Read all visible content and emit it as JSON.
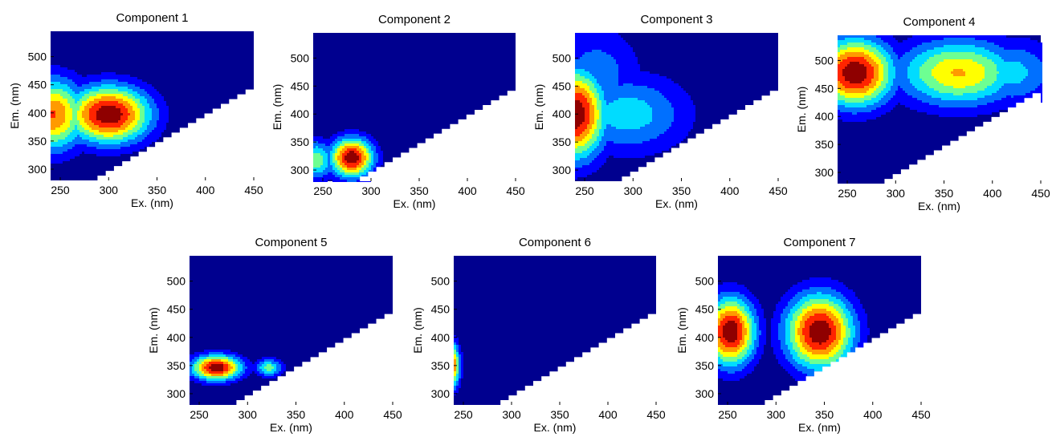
{
  "chart_data": [
    {
      "type": "heatmap",
      "title": "Component 1",
      "xlabel": "Ex. (nm)",
      "ylabel": "Em. (nm)",
      "xlim": [
        240,
        450
      ],
      "ylim": [
        280,
        545
      ],
      "xticks": [
        250,
        300,
        350,
        400,
        450
      ],
      "yticks": [
        300,
        350,
        400,
        450,
        500
      ],
      "peaks": [
        {
          "ex": 300,
          "em": 397,
          "intensity": 1.0,
          "sx": 27,
          "sy": 32
        },
        {
          "ex": 242,
          "em": 397,
          "intensity": 0.75,
          "sx": 22,
          "sy": 40
        },
        {
          "ex": 272,
          "em": 397,
          "intensity": 0.38,
          "sx": 30,
          "sy": 30
        }
      ]
    },
    {
      "type": "heatmap",
      "title": "Component 2",
      "xlabel": "Ex. (nm)",
      "ylabel": "Em. (nm)",
      "xlim": [
        240,
        450
      ],
      "ylim": [
        280,
        545
      ],
      "xticks": [
        250,
        300,
        350,
        400,
        450
      ],
      "yticks": [
        300,
        350,
        400,
        450,
        500
      ],
      "peaks": [
        {
          "ex": 280,
          "em": 322,
          "intensity": 1.0,
          "sx": 14,
          "sy": 22
        },
        {
          "ex": 243,
          "em": 318,
          "intensity": 0.45,
          "sx": 12,
          "sy": 22
        }
      ]
    },
    {
      "type": "heatmap",
      "title": "Component 3",
      "xlabel": "Ex. (nm)",
      "ylabel": "Em. (nm)",
      "xlim": [
        240,
        450
      ],
      "ylim": [
        280,
        545
      ],
      "xticks": [
        250,
        300,
        350,
        400,
        450
      ],
      "yticks": [
        300,
        350,
        400,
        450,
        500
      ],
      "peaks": [
        {
          "ex": 240,
          "em": 400,
          "intensity": 1.0,
          "sx": 20,
          "sy": 50
        },
        {
          "ex": 295,
          "em": 400,
          "intensity": 0.32,
          "sx": 40,
          "sy": 45
        },
        {
          "ex": 262,
          "em": 470,
          "intensity": 0.22,
          "sx": 30,
          "sy": 55
        }
      ]
    },
    {
      "type": "heatmap",
      "title": "Component 4",
      "xlabel": "Ex. (nm)",
      "ylabel": "Em. (nm)",
      "xlim": [
        240,
        450
      ],
      "ylim": [
        280,
        545
      ],
      "xticks": [
        250,
        300,
        350,
        400,
        450
      ],
      "yticks": [
        300,
        350,
        400,
        450,
        500
      ],
      "peaks": [
        {
          "ex": 258,
          "em": 478,
          "intensity": 1.0,
          "sx": 25,
          "sy": 38
        },
        {
          "ex": 365,
          "em": 478,
          "intensity": 0.62,
          "sx": 40,
          "sy": 38
        },
        {
          "ex": 420,
          "em": 478,
          "intensity": 0.3,
          "sx": 30,
          "sy": 38
        }
      ]
    },
    {
      "type": "heatmap",
      "title": "Component 5",
      "xlabel": "Ex. (nm)",
      "ylabel": "Em. (nm)",
      "xlim": [
        240,
        450
      ],
      "ylim": [
        280,
        545
      ],
      "xticks": [
        250,
        300,
        350,
        400,
        450
      ],
      "yticks": [
        300,
        350,
        400,
        450,
        500
      ],
      "peaks": [
        {
          "ex": 268,
          "em": 346,
          "intensity": 1.0,
          "sx": 16,
          "sy": 14
        },
        {
          "ex": 322,
          "em": 346,
          "intensity": 0.42,
          "sx": 9,
          "sy": 10
        }
      ]
    },
    {
      "type": "heatmap",
      "title": "Component 6",
      "xlabel": "Ex. (nm)",
      "ylabel": "Em. (nm)",
      "xlim": [
        240,
        450
      ],
      "ylim": [
        280,
        545
      ],
      "xticks": [
        250,
        300,
        350,
        400,
        450
      ],
      "yticks": [
        300,
        350,
        400,
        450,
        500
      ],
      "peaks": [
        {
          "ex": 236,
          "em": 350,
          "intensity": 1.0,
          "sx": 6,
          "sy": 25
        }
      ]
    },
    {
      "type": "heatmap",
      "title": "Component 7",
      "xlabel": "Ex. (nm)",
      "ylabel": "Em. (nm)",
      "xlim": [
        240,
        450
      ],
      "ylim": [
        280,
        545
      ],
      "xticks": [
        250,
        300,
        350,
        400,
        450
      ],
      "yticks": [
        300,
        350,
        400,
        450,
        500
      ],
      "peaks": [
        {
          "ex": 253,
          "em": 410,
          "intensity": 1.0,
          "sx": 16,
          "sy": 38
        },
        {
          "ex": 345,
          "em": 410,
          "intensity": 1.0,
          "sx": 22,
          "sy": 42
        }
      ]
    }
  ]
}
